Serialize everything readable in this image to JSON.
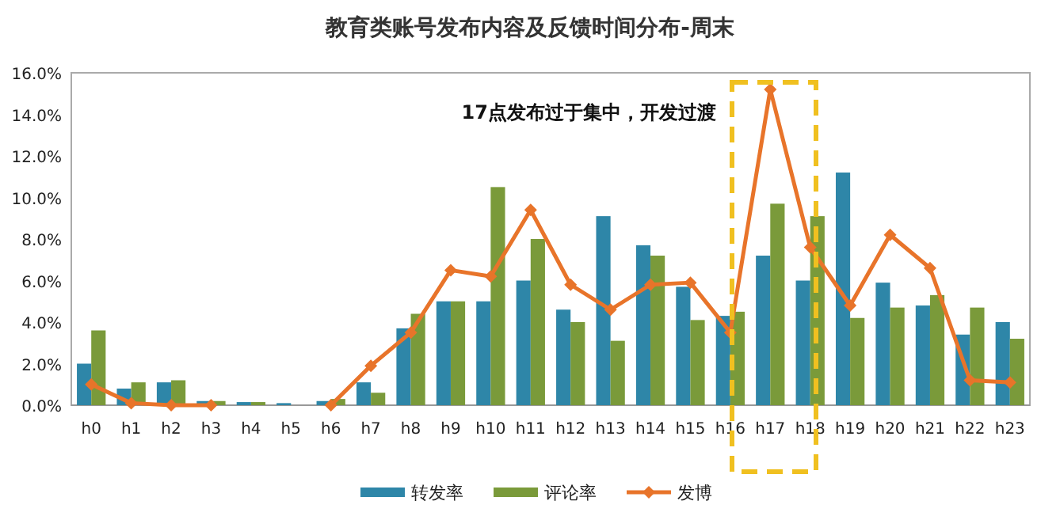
{
  "chart_data": {
    "type": "bar",
    "title": "教育类账号发布内容及反馈时间分布-周末",
    "categories": [
      "h0",
      "h1",
      "h2",
      "h3",
      "h4",
      "h5",
      "h6",
      "h7",
      "h8",
      "h9",
      "h10",
      "h11",
      "h12",
      "h13",
      "h14",
      "h15",
      "h16",
      "h17",
      "h18",
      "h19",
      "h20",
      "h21",
      "h22",
      "h23"
    ],
    "series": [
      {
        "name": "转发率",
        "color": "#2e86a8",
        "values": [
          2.0,
          0.8,
          1.1,
          0.2,
          0.15,
          0.1,
          0.2,
          1.1,
          3.7,
          5.0,
          5.0,
          6.0,
          4.6,
          9.1,
          7.7,
          5.7,
          4.3,
          7.2,
          6.0,
          11.2,
          5.9,
          4.8,
          3.4,
          4.0
        ]
      },
      {
        "name": "评论率",
        "color": "#7a9a3a",
        "values": [
          3.6,
          1.1,
          1.2,
          0.2,
          0.15,
          0.0,
          0.3,
          0.6,
          4.4,
          5.0,
          10.5,
          8.0,
          4.0,
          3.1,
          7.2,
          4.1,
          4.5,
          9.7,
          9.1,
          4.2,
          4.7,
          5.3,
          4.7,
          3.2
        ]
      },
      {
        "name": "发博",
        "type": "line",
        "color": "#e8742a",
        "marker": "diamond",
        "values": [
          1.0,
          0.1,
          0.0,
          0.0,
          null,
          null,
          0.0,
          1.9,
          3.5,
          6.5,
          6.2,
          9.4,
          5.8,
          4.6,
          5.8,
          5.9,
          3.5,
          15.2,
          7.6,
          4.8,
          8.2,
          6.6,
          1.2,
          1.1
        ]
      }
    ],
    "ylim": [
      0,
      16
    ],
    "yticks": [
      {
        "value": 0,
        "label": "0.0%"
      },
      {
        "value": 2,
        "label": "2.0%"
      },
      {
        "value": 4,
        "label": "4.0%"
      },
      {
        "value": 6,
        "label": "6.0%"
      },
      {
        "value": 8,
        "label": "8.0%"
      },
      {
        "value": 10,
        "label": "10.0%"
      },
      {
        "value": 12,
        "label": "12.0%"
      },
      {
        "value": 14,
        "label": "14.0%"
      },
      {
        "value": 16,
        "label": "16.0%"
      }
    ],
    "annotations": [
      "17点发布过于集中，开发过渡"
    ],
    "grid": false,
    "legend": "bottom"
  }
}
